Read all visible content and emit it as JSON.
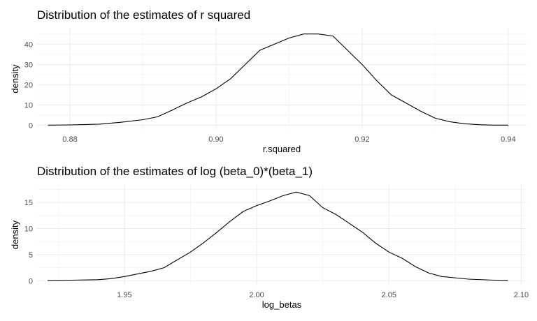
{
  "chart_data": [
    {
      "type": "line",
      "title": "Distribution of the estimates of r squared",
      "xlabel": "r.squared",
      "ylabel": "density",
      "xlim": [
        0.8755,
        0.9425
      ],
      "ylim": [
        -2.2,
        48
      ],
      "x_ticks": [
        {
          "value": 0.88,
          "label": "0.88"
        },
        {
          "value": 0.9,
          "label": "0.90"
        },
        {
          "value": 0.92,
          "label": "0.92"
        },
        {
          "value": 0.94,
          "label": "0.94"
        }
      ],
      "y_ticks": [
        {
          "value": 0,
          "label": "0"
        },
        {
          "value": 10,
          "label": "10"
        },
        {
          "value": 20,
          "label": "20"
        },
        {
          "value": 30,
          "label": "30"
        },
        {
          "value": 40,
          "label": "40"
        }
      ],
      "grid": true,
      "series": [
        {
          "x": [
            0.877,
            0.88,
            0.884,
            0.887,
            0.89,
            0.892,
            0.894,
            0.896,
            0.898,
            0.9,
            0.902,
            0.904,
            0.906,
            0.908,
            0.91,
            0.912,
            0.914,
            0.916,
            0.918,
            0.92,
            0.922,
            0.924,
            0.926,
            0.928,
            0.93,
            0.932,
            0.934,
            0.936,
            0.938,
            0.94
          ],
          "y": [
            0.1,
            0.2,
            0.6,
            1.5,
            2.8,
            4.2,
            7.5,
            11,
            14,
            18,
            23,
            30,
            37,
            40,
            43,
            45,
            45,
            44,
            37,
            30,
            22,
            15,
            11,
            7,
            3.5,
            1.8,
            0.8,
            0.3,
            0.1,
            0.1
          ]
        }
      ]
    },
    {
      "type": "line",
      "title": "Distribution of the estimates of log (beta_0)*(beta_1)",
      "xlabel": "log_betas",
      "ylabel": "density",
      "xlim": [
        1.917,
        2.102
      ],
      "ylim": [
        -0.9,
        18.5
      ],
      "x_ticks": [
        {
          "value": 1.95,
          "label": "1.95"
        },
        {
          "value": 2.0,
          "label": "2.00"
        },
        {
          "value": 2.05,
          "label": "2.05"
        },
        {
          "value": 2.1,
          "label": "2.10"
        }
      ],
      "y_ticks": [
        {
          "value": 0,
          "label": "0"
        },
        {
          "value": 5,
          "label": "5"
        },
        {
          "value": 10,
          "label": "10"
        },
        {
          "value": 15,
          "label": "15"
        }
      ],
      "grid": true,
      "series": [
        {
          "x": [
            1.921,
            1.93,
            1.94,
            1.945,
            1.95,
            1.955,
            1.96,
            1.965,
            1.97,
            1.975,
            1.98,
            1.985,
            1.99,
            1.995,
            2.0,
            2.005,
            2.01,
            2.015,
            2.02,
            2.025,
            2.03,
            2.035,
            2.04,
            2.045,
            2.05,
            2.055,
            2.06,
            2.065,
            2.07,
            2.08,
            2.09,
            2.095
          ],
          "y": [
            0.05,
            0.1,
            0.2,
            0.4,
            0.8,
            1.3,
            1.8,
            2.5,
            4,
            5.5,
            7.3,
            9.3,
            11.4,
            13.3,
            14.4,
            15.3,
            16.3,
            17,
            16.3,
            14,
            12.7,
            11,
            9.3,
            7.2,
            5.5,
            4.3,
            2.7,
            1.5,
            0.8,
            0.3,
            0.1,
            0.05
          ]
        }
      ]
    }
  ]
}
